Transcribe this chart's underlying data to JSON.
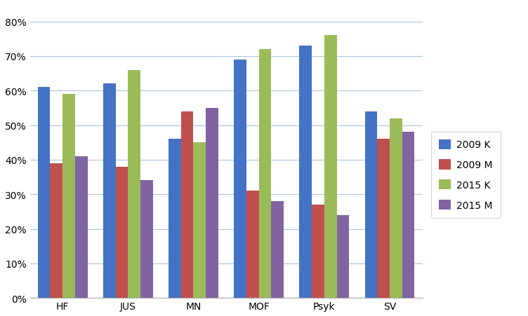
{
  "categories": [
    "HF",
    "JUS",
    "MN",
    "MOF",
    "Psyk",
    "SV"
  ],
  "series": {
    "2009 K": [
      0.61,
      0.62,
      0.46,
      0.69,
      0.73,
      0.54
    ],
    "2009 M": [
      0.39,
      0.38,
      0.54,
      0.31,
      0.27,
      0.46
    ],
    "2015 K": [
      0.59,
      0.66,
      0.45,
      0.72,
      0.76,
      0.52
    ],
    "2015 M": [
      0.41,
      0.34,
      0.55,
      0.28,
      0.24,
      0.48
    ]
  },
  "series_order": [
    "2009 K",
    "2009 M",
    "2015 K",
    "2015 M"
  ],
  "colors": {
    "2009 K": "#4472C4",
    "2009 M": "#C0504D",
    "2015 K": "#9BBB59",
    "2015 M": "#8064A2"
  },
  "ylim": [
    0.0,
    0.85
  ],
  "yticks": [
    0.0,
    0.1,
    0.2,
    0.3,
    0.4,
    0.5,
    0.6,
    0.7,
    0.8
  ],
  "yticklabels": [
    "0%",
    "10%",
    "20%",
    "30%",
    "40%",
    "50%",
    "60%",
    "70%",
    "80%"
  ],
  "bar_width": 0.19,
  "background_color": "#ffffff",
  "plot_bg_color": "#ffffff",
  "grid_color": "#A9C4E0",
  "legend_fontsize": 10,
  "tick_fontsize": 10,
  "figsize": [
    7.52,
    4.52
  ],
  "dpi": 100
}
